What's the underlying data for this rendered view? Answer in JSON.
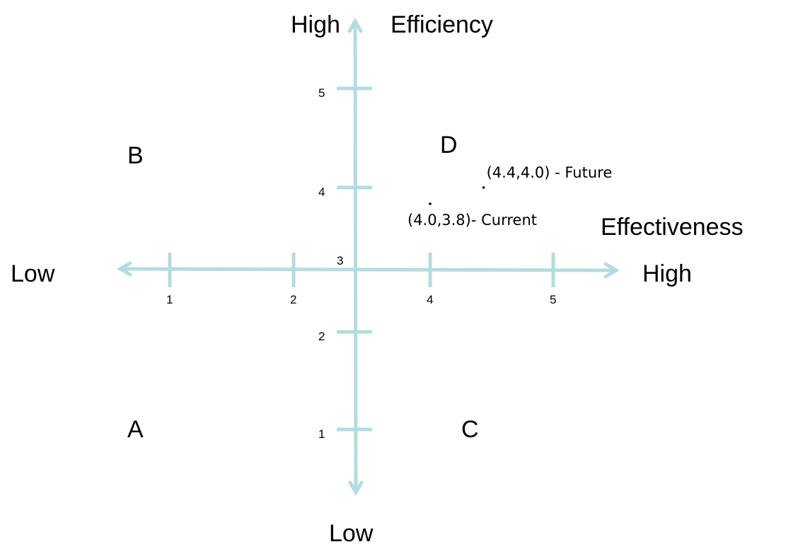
{
  "chart_data": {
    "type": "scatter",
    "axis_color": "#b4dce0",
    "x_axis": {
      "label": "Effectiveness",
      "low_label": "Low",
      "high_label": "High",
      "ticks": [
        "1",
        "2",
        "4",
        "5"
      ],
      "origin_label": "3"
    },
    "y_axis": {
      "label": "Efficiency",
      "low_label": "Low",
      "high_label": "High",
      "ticks": [
        "5",
        "4",
        "2",
        "1"
      ]
    },
    "quadrants": {
      "top_left": "B",
      "top_right": "D",
      "bottom_left": "A",
      "bottom_right": "C"
    },
    "points": [
      {
        "x": 4.0,
        "y": 3.8,
        "label": "(4.0,3.8)- Current"
      },
      {
        "x": 4.4,
        "y": 4.0,
        "label": "(4.4,4.0) - Future"
      }
    ]
  }
}
